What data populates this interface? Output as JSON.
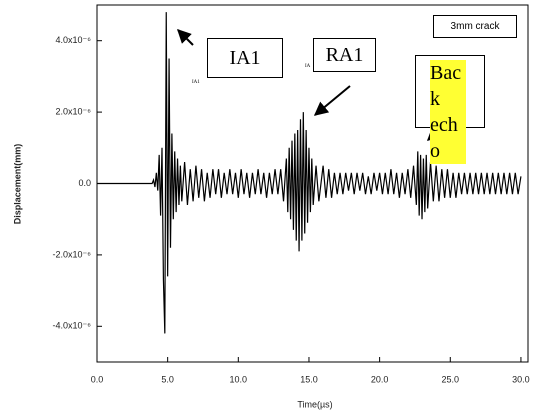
{
  "chart_data": {
    "type": "line",
    "xlabel": "Time(µs)",
    "ylabel": "Displacement(mm)",
    "annotations": [
      "3mm crack",
      "IA1",
      "RA1",
      "Back echo",
      "IA1",
      "IA"
    ],
    "xlim": [
      0,
      30.5
    ],
    "xticks": [
      {
        "value": 0,
        "label": "0.0"
      },
      {
        "value": 5,
        "label": "5.0"
      },
      {
        "value": 10,
        "label": "10.0"
      },
      {
        "value": 15,
        "label": "15.0"
      },
      {
        "value": 20,
        "label": "20.0"
      },
      {
        "value": 25,
        "label": "25.0"
      },
      {
        "value": 30,
        "label": "30.0"
      }
    ],
    "ylim": [
      -5e-06,
      5e-06
    ],
    "yticks": [
      {
        "value": -4e-06,
        "label": "-4.0x10⁻⁶"
      },
      {
        "value": -2e-06,
        "label": "-2.0x10⁻⁶"
      },
      {
        "value": 0,
        "label": "0.0"
      },
      {
        "value": 2e-06,
        "label": "2.0x10⁻⁶"
      },
      {
        "value": 4e-06,
        "label": "4.0x10⁻⁶"
      }
    ],
    "grid": false,
    "x": [
      0,
      3.9,
      4.0,
      4.1,
      4.2,
      4.3,
      4.4,
      4.5,
      4.6,
      4.7,
      4.8,
      4.9,
      5.0,
      5.1,
      5.2,
      5.3,
      5.4,
      5.5,
      5.6,
      5.7,
      5.8,
      5.9,
      6.0,
      6.2,
      6.4,
      6.6,
      6.8,
      7.0,
      7.2,
      7.4,
      7.6,
      7.8,
      8.0,
      8.2,
      8.4,
      8.6,
      8.8,
      9.0,
      9.2,
      9.4,
      9.6,
      9.8,
      10.0,
      10.2,
      10.4,
      10.6,
      10.8,
      11.0,
      11.2,
      11.4,
      11.6,
      11.8,
      12.0,
      12.2,
      12.4,
      12.6,
      12.8,
      13.0,
      13.2,
      13.4,
      13.5,
      13.6,
      13.7,
      13.8,
      13.9,
      14.0,
      14.1,
      14.2,
      14.3,
      14.4,
      14.5,
      14.6,
      14.7,
      14.8,
      14.9,
      15.0,
      15.1,
      15.2,
      15.3,
      15.5,
      15.7,
      16.0,
      16.2,
      16.4,
      16.6,
      16.8,
      17.0,
      17.2,
      17.4,
      17.6,
      17.8,
      18.0,
      18.2,
      18.4,
      18.6,
      18.8,
      19.0,
      19.2,
      19.4,
      19.6,
      19.8,
      20.0,
      20.2,
      20.4,
      20.6,
      20.8,
      21.0,
      21.2,
      21.4,
      21.6,
      21.8,
      22.0,
      22.2,
      22.4,
      22.6,
      22.7,
      22.8,
      22.9,
      23.0,
      23.1,
      23.2,
      23.3,
      23.4,
      23.6,
      23.8,
      24.0,
      24.2,
      24.4,
      24.6,
      24.8,
      25.0,
      25.2,
      25.4,
      25.6,
      25.8,
      26.0,
      26.2,
      26.4,
      26.6,
      26.8,
      27.0,
      27.2,
      27.4,
      27.6,
      27.8,
      28.0,
      28.2,
      28.4,
      28.6,
      28.8,
      29.0,
      29.2,
      29.4,
      29.6,
      29.8,
      30.0
    ],
    "series": [
      {
        "color": "#000000",
        "values": [
          0,
          0,
          1e-07,
          -1e-07,
          3e-07,
          -2e-07,
          8e-07,
          -9e-07,
          1e-06,
          -2.7e-06,
          -4.2e-06,
          4.8e-06,
          -2.6e-06,
          3.5e-06,
          -1.8e-06,
          1.4e-06,
          -1e-06,
          9e-07,
          -8e-07,
          7e-07,
          -6e-07,
          5e-07,
          -5e-07,
          6e-07,
          -6e-07,
          4e-07,
          -5e-07,
          5e-07,
          -4e-07,
          4e-07,
          -5e-07,
          3e-07,
          -4e-07,
          4e-07,
          -3e-07,
          4e-07,
          -4e-07,
          3e-07,
          -3e-07,
          4e-07,
          -3e-07,
          3e-07,
          -4e-07,
          4e-07,
          -3e-07,
          3e-07,
          -4e-07,
          3e-07,
          -3e-07,
          4e-07,
          -3e-07,
          3e-07,
          -4e-07,
          3e-07,
          -3e-07,
          4e-07,
          -3e-07,
          4e-07,
          -5e-07,
          7e-07,
          -8e-07,
          1e-06,
          -1e-06,
          1.2e-06,
          -1.3e-06,
          1.4e-06,
          -1.6e-06,
          1.5e-06,
          -1.9e-06,
          1.8e-06,
          -1.6e-06,
          2e-06,
          -1.4e-06,
          1.5e-06,
          -1.1e-06,
          1e-06,
          -8e-07,
          7e-07,
          -6e-07,
          5e-07,
          -5e-07,
          5e-07,
          -4e-07,
          4e-07,
          -4e-07,
          3e-07,
          -3e-07,
          3e-07,
          -3e-07,
          3e-07,
          -2e-07,
          3e-07,
          -3e-07,
          3e-07,
          -2e-07,
          3e-07,
          -3e-07,
          2e-07,
          -3e-07,
          3e-07,
          -2e-07,
          3e-07,
          -3e-07,
          3e-07,
          -3e-07,
          4e-07,
          -3e-07,
          3e-07,
          -4e-07,
          3e-07,
          -3e-07,
          4e-07,
          -4e-07,
          5e-07,
          -6e-07,
          9e-07,
          -9e-07,
          8e-07,
          -1e-06,
          7e-07,
          -8e-07,
          8e-07,
          -7e-07,
          6e-07,
          -5e-07,
          5e-07,
          -5e-07,
          4e-07,
          -4e-07,
          4e-07,
          -4e-07,
          3e-07,
          -4e-07,
          3e-07,
          -3e-07,
          3e-07,
          -3e-07,
          3e-07,
          -3e-07,
          3e-07,
          -3e-07,
          3e-07,
          -3e-07,
          3e-07,
          -3e-07,
          3e-07,
          -3e-07,
          3e-07,
          -3e-07,
          3e-07,
          -3e-07,
          3e-07,
          -3e-07,
          3e-07,
          -3e-07,
          2e-07
        ]
      }
    ]
  }
}
